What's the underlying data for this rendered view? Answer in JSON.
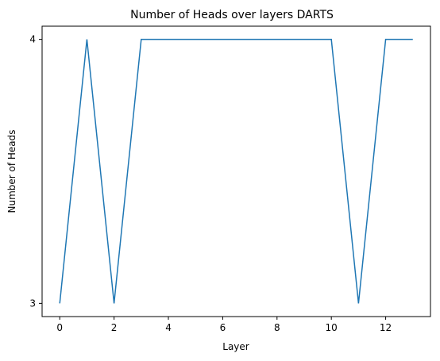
{
  "chart_data": {
    "type": "line",
    "title": "Number of Heads over layers DARTS",
    "xlabel": "Layer",
    "ylabel": "Number of Heads",
    "x": [
      0,
      1,
      2,
      3,
      4,
      5,
      6,
      7,
      8,
      9,
      10,
      11,
      12,
      13
    ],
    "series": [
      {
        "values": [
          3,
          4,
          3,
          4,
          4,
          4,
          4,
          4,
          4,
          4,
          4,
          3,
          4,
          4
        ],
        "color": "#1f77b4"
      }
    ],
    "xlim": [
      -0.65,
      13.65
    ],
    "ylim": [
      2.95,
      4.05
    ],
    "xticks": [
      0,
      2,
      4,
      6,
      8,
      10,
      12
    ],
    "yticks": [
      3,
      4
    ],
    "grid": false,
    "legend": "none"
  }
}
